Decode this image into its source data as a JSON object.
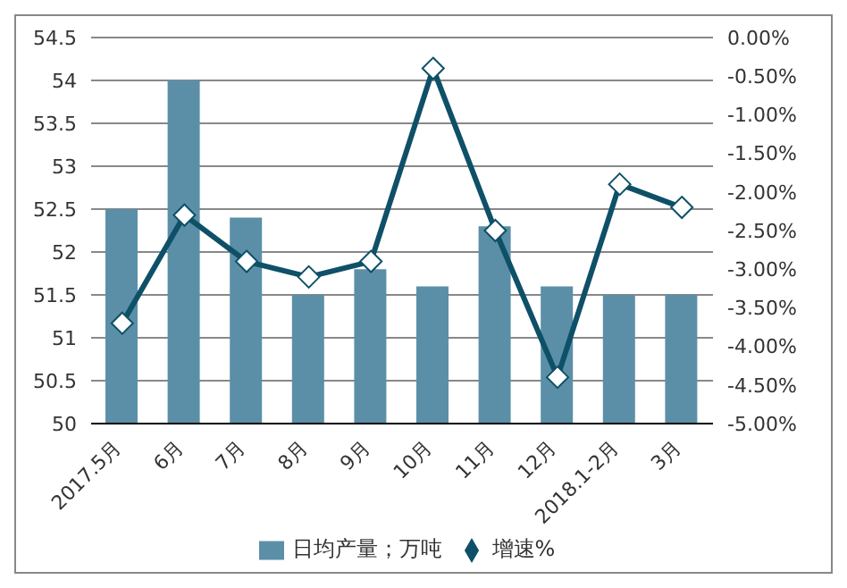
{
  "chart_data": {
    "type": "bar",
    "categories": [
      "2017.5月",
      "6月",
      "7月",
      "8月",
      "9月",
      "10月",
      "11月",
      "12月",
      "2018.1-2月",
      "3月"
    ],
    "series": [
      {
        "name": "日均产量；万吨",
        "color": "#5b8fa8",
        "values": [
          52.5,
          54.0,
          52.4,
          51.5,
          51.8,
          51.6,
          52.3,
          51.6,
          51.5,
          51.5
        ]
      },
      {
        "name": "增速%",
        "type": "line",
        "axis": "y2",
        "color": "#0e5068",
        "marker": "diamond",
        "values": [
          -3.7,
          -2.3,
          -2.9,
          -3.1,
          -2.9,
          -0.4,
          -2.5,
          -4.4,
          -1.9,
          -2.2
        ]
      }
    ],
    "ylim": [
      50,
      54.5
    ],
    "yticks": [
      50,
      50.5,
      51,
      51.5,
      52,
      52.5,
      53,
      53.5,
      54,
      54.5
    ],
    "y2lim": [
      -5,
      0
    ],
    "y2ticks": [
      {
        "value": -5,
        "label": "-5.00%"
      },
      {
        "value": -4.5,
        "label": "-4.50%"
      },
      {
        "value": -4,
        "label": "-4.00%"
      },
      {
        "value": -3.5,
        "label": "-3.50%"
      },
      {
        "value": -3,
        "label": "-3.00%"
      },
      {
        "value": -2.5,
        "label": "-2.50%"
      },
      {
        "value": -2,
        "label": "-2.00%"
      },
      {
        "value": -1.5,
        "label": "-1.50%"
      },
      {
        "value": -1,
        "label": "-1.00%"
      },
      {
        "value": -0.5,
        "label": "-0.50%"
      },
      {
        "value": 0,
        "label": "0.00%"
      }
    ],
    "grid": "y",
    "legend": "bottom"
  }
}
